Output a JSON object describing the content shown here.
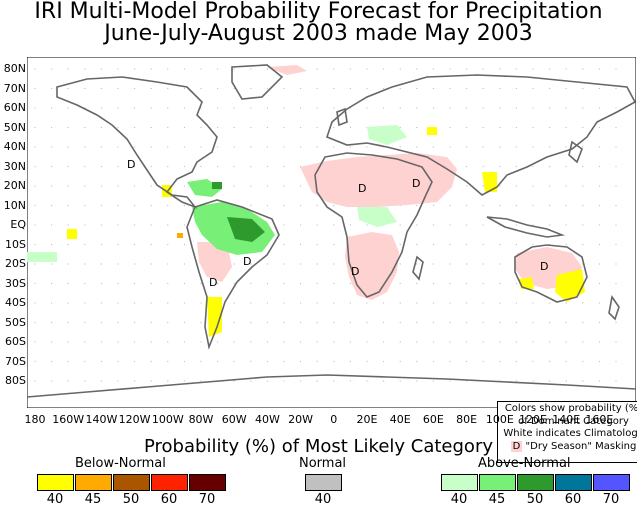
{
  "title_line1": "IRI Multi-Model Probability Forecast for Precipitation",
  "title_line2": "June-July-August 2003 made May 2003",
  "lat_labels": [
    "80N",
    "70N",
    "60N",
    "50N",
    "40N",
    "30N",
    "20N",
    "10N",
    "EQ",
    "10S",
    "20S",
    "30S",
    "40S",
    "50S",
    "60S",
    "70S",
    "80S"
  ],
  "lon_labels": [
    "180",
    "160W",
    "140W",
    "120W",
    "100W",
    "80W",
    "60W",
    "40W",
    "20W",
    "0",
    "20E",
    "40E",
    "60E",
    "80E",
    "100E",
    "120E",
    "140E",
    "160E"
  ],
  "inset_legend": {
    "line1": "Colors show probability (%)",
    "line2": "of Dominant Category",
    "line3": "White indicates Climatology",
    "dry_marker": "D",
    "line4": "\"Dry Season\" Masking"
  },
  "dry_season_marker": "D",
  "colorbar_title": "Probability (%) of Most Likely Category",
  "below_normal": {
    "label": "Below-Normal",
    "ticks": [
      "40",
      "45",
      "50",
      "60",
      "70"
    ],
    "colors": [
      "#ffff00",
      "#ffaa00",
      "#aa5500",
      "#ff2200",
      "#660000"
    ]
  },
  "normal": {
    "label": "Normal",
    "ticks": [
      "40"
    ],
    "colors": [
      "#c0c0c0"
    ]
  },
  "above_normal": {
    "label": "Above-Normal",
    "ticks": [
      "40",
      "45",
      "50",
      "60",
      "70"
    ],
    "colors": [
      "#c8ffc8",
      "#78f078",
      "#2e9a2e",
      "#00779a",
      "#5555ff"
    ]
  },
  "dry_season_color": "#ffd2d2"
}
